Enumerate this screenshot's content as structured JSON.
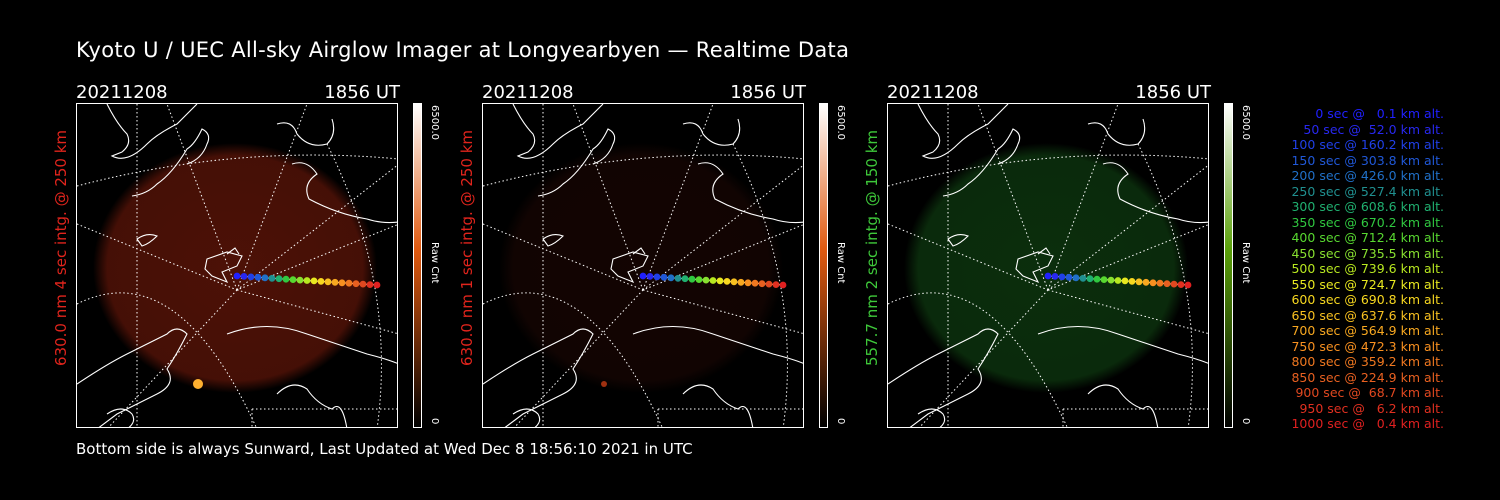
{
  "title": "Kyoto U / UEC All-sky Airglow Imager at Longyearbyen — Realtime Data",
  "footer": "Bottom side is always Sunward, Last Updated at Wed Dec  8 18:56:10 2021 in UTC",
  "panels": [
    {
      "date": "20211208",
      "time": "1856 UT",
      "side_label": "630.0 nm  4 sec intg. @ 250 km",
      "label_color": "#e0241c",
      "glow_color": "#5a1408",
      "glow_intensity": 0.85,
      "colorbar": {
        "max": "6500.0",
        "unit": "Raw Cnt",
        "min": "0",
        "top_color": "#ffffff",
        "mid_color": "#e05a10",
        "bottom_color": "#000000"
      }
    },
    {
      "date": "20211208",
      "time": "1856 UT",
      "side_label": "630.0 nm  1 sec intg. @ 250 km",
      "label_color": "#e0241c",
      "glow_color": "#2a0a05",
      "glow_intensity": 0.45,
      "colorbar": {
        "max": "6500.0",
        "unit": "Raw Cnt",
        "min": "0",
        "top_color": "#ffffff",
        "mid_color": "#e05a10",
        "bottom_color": "#000000"
      }
    },
    {
      "date": "20211208",
      "time": "1856 UT",
      "side_label": "557.7 nm  2 sec intg. @ 150 km",
      "label_color": "#3ec83a",
      "glow_color": "#0e3a10",
      "glow_intensity": 0.8,
      "colorbar": {
        "max": "6500.0",
        "unit": "Raw Cnt",
        "min": "0",
        "top_color": "#ffffff",
        "mid_color": "#5aa00a",
        "bottom_color": "#000000"
      }
    }
  ],
  "legend": [
    {
      "text": "0 sec @   0.1 km alt.",
      "color": "#2020ff"
    },
    {
      "text": "50 sec @  52.0 km alt.",
      "color": "#2828f0"
    },
    {
      "text": "100 sec @ 160.2 km alt.",
      "color": "#2040e8"
    },
    {
      "text": "150 sec @ 303.8 km alt.",
      "color": "#2058d8"
    },
    {
      "text": "200 sec @ 426.0 km alt.",
      "color": "#2070c8"
    },
    {
      "text": "250 sec @ 527.4 km alt.",
      "color": "#209090"
    },
    {
      "text": "300 sec @ 608.6 km alt.",
      "color": "#20b070"
    },
    {
      "text": "350 sec @ 670.2 km alt.",
      "color": "#30c840"
    },
    {
      "text": "400 sec @ 712.4 km alt.",
      "color": "#58d830"
    },
    {
      "text": "450 sec @ 735.5 km alt.",
      "color": "#88e030"
    },
    {
      "text": "500 sec @ 739.6 km alt.",
      "color": "#b8e820"
    },
    {
      "text": "550 sec @ 724.7 km alt.",
      "color": "#e8e820"
    },
    {
      "text": "600 sec @ 690.8 km alt.",
      "color": "#f8d820"
    },
    {
      "text": "650 sec @ 637.6 km alt.",
      "color": "#f8c020"
    },
    {
      "text": "700 sec @ 564.9 km alt.",
      "color": "#f8a820"
    },
    {
      "text": "750 sec @ 472.3 km alt.",
      "color": "#f89020"
    },
    {
      "text": "800 sec @ 359.2 km alt.",
      "color": "#f07820"
    },
    {
      "text": "850 sec @ 224.9 km alt.",
      "color": "#e86020"
    },
    {
      "text": "900 sec @  68.7 km alt.",
      "color": "#e04820"
    },
    {
      "text": "950 sec @   6.2 km alt.",
      "color": "#e03020"
    },
    {
      "text": "1000 sec @   0.4 km alt.",
      "color": "#e02020"
    }
  ]
}
